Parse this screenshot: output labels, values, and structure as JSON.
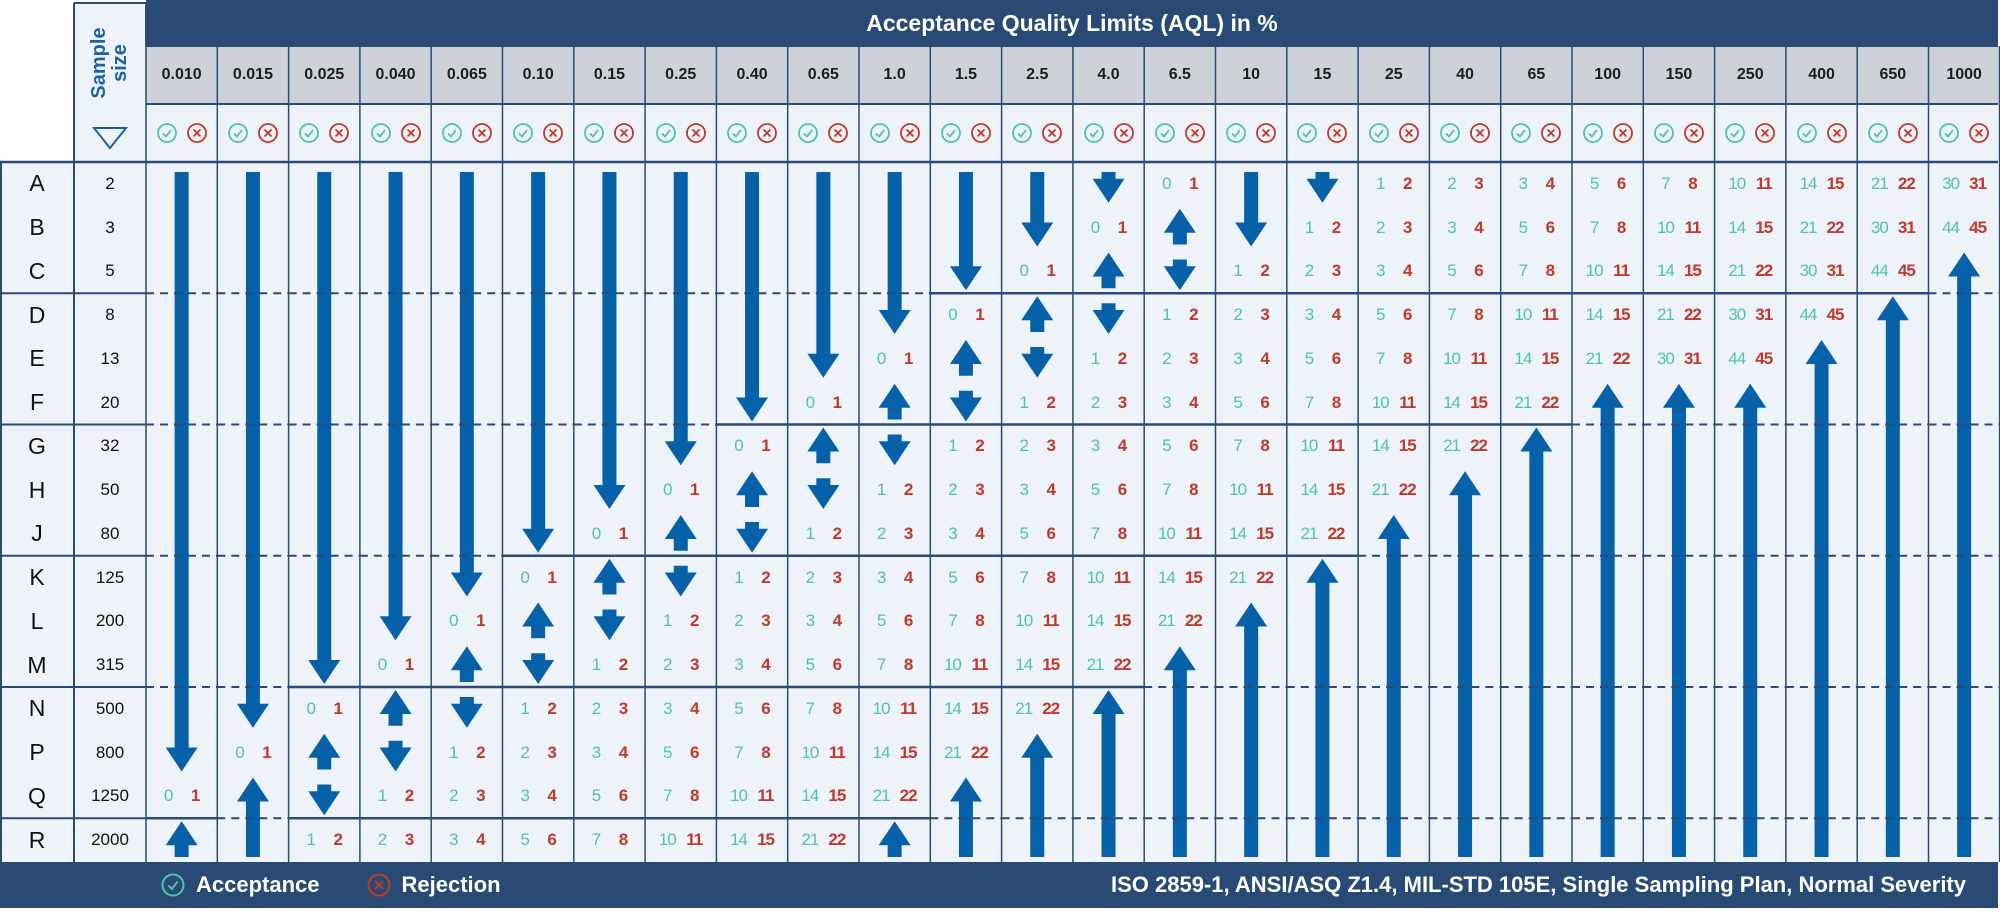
{
  "title": "Acceptance Quality Limits (AQL) in %",
  "sample_size_label": "Sample size",
  "aql_levels": [
    "0.010",
    "0.015",
    "0.025",
    "0.040",
    "0.065",
    "0.10",
    "0.15",
    "0.25",
    "0.40",
    "0.65",
    "1.0",
    "1.5",
    "2.5",
    "4.0",
    "6.5",
    "10",
    "15",
    "25",
    "40",
    "65",
    "100",
    "150",
    "250",
    "400",
    "650",
    "1000"
  ],
  "code_letters": [
    {
      "code": "A",
      "size": "2"
    },
    {
      "code": "B",
      "size": "3"
    },
    {
      "code": "C",
      "size": "5"
    },
    {
      "code": "D",
      "size": "8"
    },
    {
      "code": "E",
      "size": "13"
    },
    {
      "code": "F",
      "size": "20"
    },
    {
      "code": "G",
      "size": "32"
    },
    {
      "code": "H",
      "size": "50"
    },
    {
      "code": "J",
      "size": "80"
    },
    {
      "code": "K",
      "size": "125"
    },
    {
      "code": "L",
      "size": "200"
    },
    {
      "code": "M",
      "size": "315"
    },
    {
      "code": "N",
      "size": "500"
    },
    {
      "code": "P",
      "size": "800"
    },
    {
      "code": "Q",
      "size": "1250"
    },
    {
      "code": "R",
      "size": "2000"
    }
  ],
  "plan": [
    [
      "down",
      "down",
      "down",
      "down",
      "down",
      "down",
      "down",
      "down",
      "down",
      "down",
      "down",
      "down",
      "down",
      "down",
      [
        0,
        1
      ],
      "down",
      "down",
      [
        1,
        2
      ],
      [
        2,
        3
      ],
      [
        3,
        4
      ],
      [
        5,
        6
      ],
      [
        7,
        8
      ],
      [
        10,
        11
      ],
      [
        14,
        15
      ],
      [
        21,
        22
      ],
      [
        30,
        31
      ]
    ],
    [
      "down",
      "down",
      "down",
      "down",
      "down",
      "down",
      "down",
      "down",
      "down",
      "down",
      "down",
      "down",
      "down",
      [
        0,
        1
      ],
      "up",
      "down",
      [
        1,
        2
      ],
      [
        2,
        3
      ],
      [
        3,
        4
      ],
      [
        5,
        6
      ],
      [
        7,
        8
      ],
      [
        10,
        11
      ],
      [
        14,
        15
      ],
      [
        21,
        22
      ],
      [
        30,
        31
      ],
      [
        44,
        45
      ]
    ],
    [
      "down",
      "down",
      "down",
      "down",
      "down",
      "down",
      "down",
      "down",
      "down",
      "down",
      "down",
      "down",
      [
        0,
        1
      ],
      "up",
      "down",
      [
        1,
        2
      ],
      [
        2,
        3
      ],
      [
        3,
        4
      ],
      [
        5,
        6
      ],
      [
        7,
        8
      ],
      [
        10,
        11
      ],
      [
        14,
        15
      ],
      [
        21,
        22
      ],
      [
        30,
        31
      ],
      [
        44,
        45
      ],
      "up"
    ],
    [
      "down",
      "down",
      "down",
      "down",
      "down",
      "down",
      "down",
      "down",
      "down",
      "down",
      "down",
      [
        0,
        1
      ],
      "up",
      "down",
      [
        1,
        2
      ],
      [
        2,
        3
      ],
      [
        3,
        4
      ],
      [
        5,
        6
      ],
      [
        7,
        8
      ],
      [
        10,
        11
      ],
      [
        14,
        15
      ],
      [
        21,
        22
      ],
      [
        30,
        31
      ],
      [
        44,
        45
      ],
      "up",
      "up"
    ],
    [
      "down",
      "down",
      "down",
      "down",
      "down",
      "down",
      "down",
      "down",
      "down",
      "down",
      [
        0,
        1
      ],
      "up",
      "down",
      [
        1,
        2
      ],
      [
        2,
        3
      ],
      [
        3,
        4
      ],
      [
        5,
        6
      ],
      [
        7,
        8
      ],
      [
        10,
        11
      ],
      [
        14,
        15
      ],
      [
        21,
        22
      ],
      [
        30,
        31
      ],
      [
        44,
        45
      ],
      "up",
      "up",
      "up"
    ],
    [
      "down",
      "down",
      "down",
      "down",
      "down",
      "down",
      "down",
      "down",
      "down",
      [
        0,
        1
      ],
      "up",
      "down",
      [
        1,
        2
      ],
      [
        2,
        3
      ],
      [
        3,
        4
      ],
      [
        5,
        6
      ],
      [
        7,
        8
      ],
      [
        10,
        11
      ],
      [
        14,
        15
      ],
      [
        21,
        22
      ],
      "up",
      "up",
      "up",
      "up",
      "up",
      "up"
    ],
    [
      "down",
      "down",
      "down",
      "down",
      "down",
      "down",
      "down",
      "down",
      [
        0,
        1
      ],
      "up",
      "down",
      [
        1,
        2
      ],
      [
        2,
        3
      ],
      [
        3,
        4
      ],
      [
        5,
        6
      ],
      [
        7,
        8
      ],
      [
        10,
        11
      ],
      [
        14,
        15
      ],
      [
        21,
        22
      ],
      "up",
      "up",
      "up",
      "up",
      "up",
      "up",
      "up"
    ],
    [
      "down",
      "down",
      "down",
      "down",
      "down",
      "down",
      "down",
      [
        0,
        1
      ],
      "up",
      "down",
      [
        1,
        2
      ],
      [
        2,
        3
      ],
      [
        3,
        4
      ],
      [
        5,
        6
      ],
      [
        7,
        8
      ],
      [
        10,
        11
      ],
      [
        14,
        15
      ],
      [
        21,
        22
      ],
      "up",
      "up",
      "up",
      "up",
      "up",
      "up",
      "up",
      "up"
    ],
    [
      "down",
      "down",
      "down",
      "down",
      "down",
      "down",
      [
        0,
        1
      ],
      "up",
      "down",
      [
        1,
        2
      ],
      [
        2,
        3
      ],
      [
        3,
        4
      ],
      [
        5,
        6
      ],
      [
        7,
        8
      ],
      [
        10,
        11
      ],
      [
        14,
        15
      ],
      [
        21,
        22
      ],
      "up",
      "up",
      "up",
      "up",
      "up",
      "up",
      "up",
      "up",
      "up"
    ],
    [
      "down",
      "down",
      "down",
      "down",
      "down",
      [
        0,
        1
      ],
      "up",
      "down",
      [
        1,
        2
      ],
      [
        2,
        3
      ],
      [
        3,
        4
      ],
      [
        5,
        6
      ],
      [
        7,
        8
      ],
      [
        10,
        11
      ],
      [
        14,
        15
      ],
      [
        21,
        22
      ],
      "up",
      "up",
      "up",
      "up",
      "up",
      "up",
      "up",
      "up",
      "up",
      "up"
    ],
    [
      "down",
      "down",
      "down",
      "down",
      [
        0,
        1
      ],
      "up",
      "down",
      [
        1,
        2
      ],
      [
        2,
        3
      ],
      [
        3,
        4
      ],
      [
        5,
        6
      ],
      [
        7,
        8
      ],
      [
        10,
        11
      ],
      [
        14,
        15
      ],
      [
        21,
        22
      ],
      "up",
      "up",
      "up",
      "up",
      "up",
      "up",
      "up",
      "up",
      "up",
      "up",
      "up"
    ],
    [
      "down",
      "down",
      "down",
      [
        0,
        1
      ],
      "up",
      "down",
      [
        1,
        2
      ],
      [
        2,
        3
      ],
      [
        3,
        4
      ],
      [
        5,
        6
      ],
      [
        7,
        8
      ],
      [
        10,
        11
      ],
      [
        14,
        15
      ],
      [
        21,
        22
      ],
      "up",
      "up",
      "up",
      "up",
      "up",
      "up",
      "up",
      "up",
      "up",
      "up",
      "up",
      "up"
    ],
    [
      "down",
      "down",
      [
        0,
        1
      ],
      "up",
      "down",
      [
        1,
        2
      ],
      [
        2,
        3
      ],
      [
        3,
        4
      ],
      [
        5,
        6
      ],
      [
        7,
        8
      ],
      [
        10,
        11
      ],
      [
        14,
        15
      ],
      [
        21,
        22
      ],
      "up",
      "up",
      "up",
      "up",
      "up",
      "up",
      "up",
      "up",
      "up",
      "up",
      "up",
      "up",
      "up"
    ],
    [
      "down",
      [
        0,
        1
      ],
      "up",
      "down",
      [
        1,
        2
      ],
      [
        2,
        3
      ],
      [
        3,
        4
      ],
      [
        5,
        6
      ],
      [
        7,
        8
      ],
      [
        10,
        11
      ],
      [
        14,
        15
      ],
      [
        21,
        22
      ],
      "up",
      "up",
      "up",
      "up",
      "up",
      "up",
      "up",
      "up",
      "up",
      "up",
      "up",
      "up",
      "up",
      "up"
    ],
    [
      [
        0,
        1
      ],
      "up",
      "down",
      [
        1,
        2
      ],
      [
        2,
        3
      ],
      [
        3,
        4
      ],
      [
        5,
        6
      ],
      [
        7,
        8
      ],
      [
        10,
        11
      ],
      [
        14,
        15
      ],
      [
        21,
        22
      ],
      "up",
      "up",
      "up",
      "up",
      "up",
      "up",
      "up",
      "up",
      "up",
      "up",
      "up",
      "up",
      "up",
      "up",
      "up"
    ],
    [
      "up",
      "up",
      [
        1,
        2
      ],
      [
        2,
        3
      ],
      [
        3,
        4
      ],
      [
        5,
        6
      ],
      [
        7,
        8
      ],
      [
        10,
        11
      ],
      [
        14,
        15
      ],
      [
        21,
        22
      ],
      "up",
      "up",
      "up",
      "up",
      "up",
      "up",
      "up",
      "up",
      "up",
      "up",
      "up",
      "up",
      "up",
      "up",
      "up",
      "up"
    ]
  ],
  "legend": {
    "acceptance": "Acceptance",
    "rejection": "Rejection",
    "acceptance_icon": "check-circle-icon",
    "rejection_icon": "x-circle-icon"
  },
  "footer_note": "ISO 2859-1, ANSI/ASQ Z1.4, MIL-STD 105E, Single Sampling Plan, Normal Severity",
  "colors": {
    "navy": "#284a75",
    "arrow": "#0661a8",
    "acceptance": "#4fc3a8",
    "rejection": "#c0392b",
    "header_gray": "#cdd2d9",
    "cell_bg": "#eef3f9",
    "line": "#2c4a73"
  }
}
